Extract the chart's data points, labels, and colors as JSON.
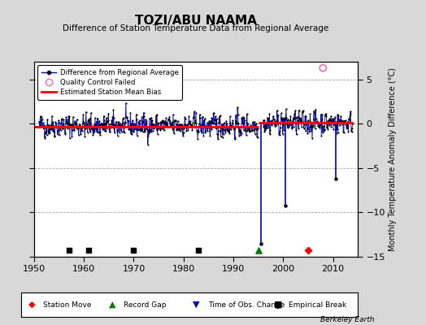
{
  "title": "TOZI/ABU NAAMA",
  "subtitle": "Difference of Station Temperature Data from Regional Average",
  "ylabel": "Monthly Temperature Anomaly Difference (°C)",
  "bg_color": "#d8d8d8",
  "plot_bg_color": "#ffffff",
  "xlim": [
    1950,
    2015
  ],
  "ylim": [
    -15,
    7
  ],
  "yticks": [
    -15,
    -10,
    -5,
    0,
    5
  ],
  "xticks": [
    1950,
    1960,
    1970,
    1980,
    1990,
    2000,
    2010
  ],
  "seed": 42,
  "station_moves": [
    2005
  ],
  "record_gaps": [
    1995
  ],
  "empirical_breaks": [
    1957,
    1961,
    1970,
    1983
  ],
  "bias_segments": [
    {
      "x_start": 1950,
      "x_end": 1995,
      "bias": -0.35
    },
    {
      "x_start": 1995,
      "x_end": 2014,
      "bias": 0.12
    }
  ],
  "outlier_x": 2008,
  "outlier_y": 6.3,
  "spike1_x": 1995.5,
  "spike1_y": -13.5,
  "spike2_x": 2000.5,
  "spike2_y": -9.2,
  "spike3_x": 2010.5,
  "spike3_y": -6.2
}
